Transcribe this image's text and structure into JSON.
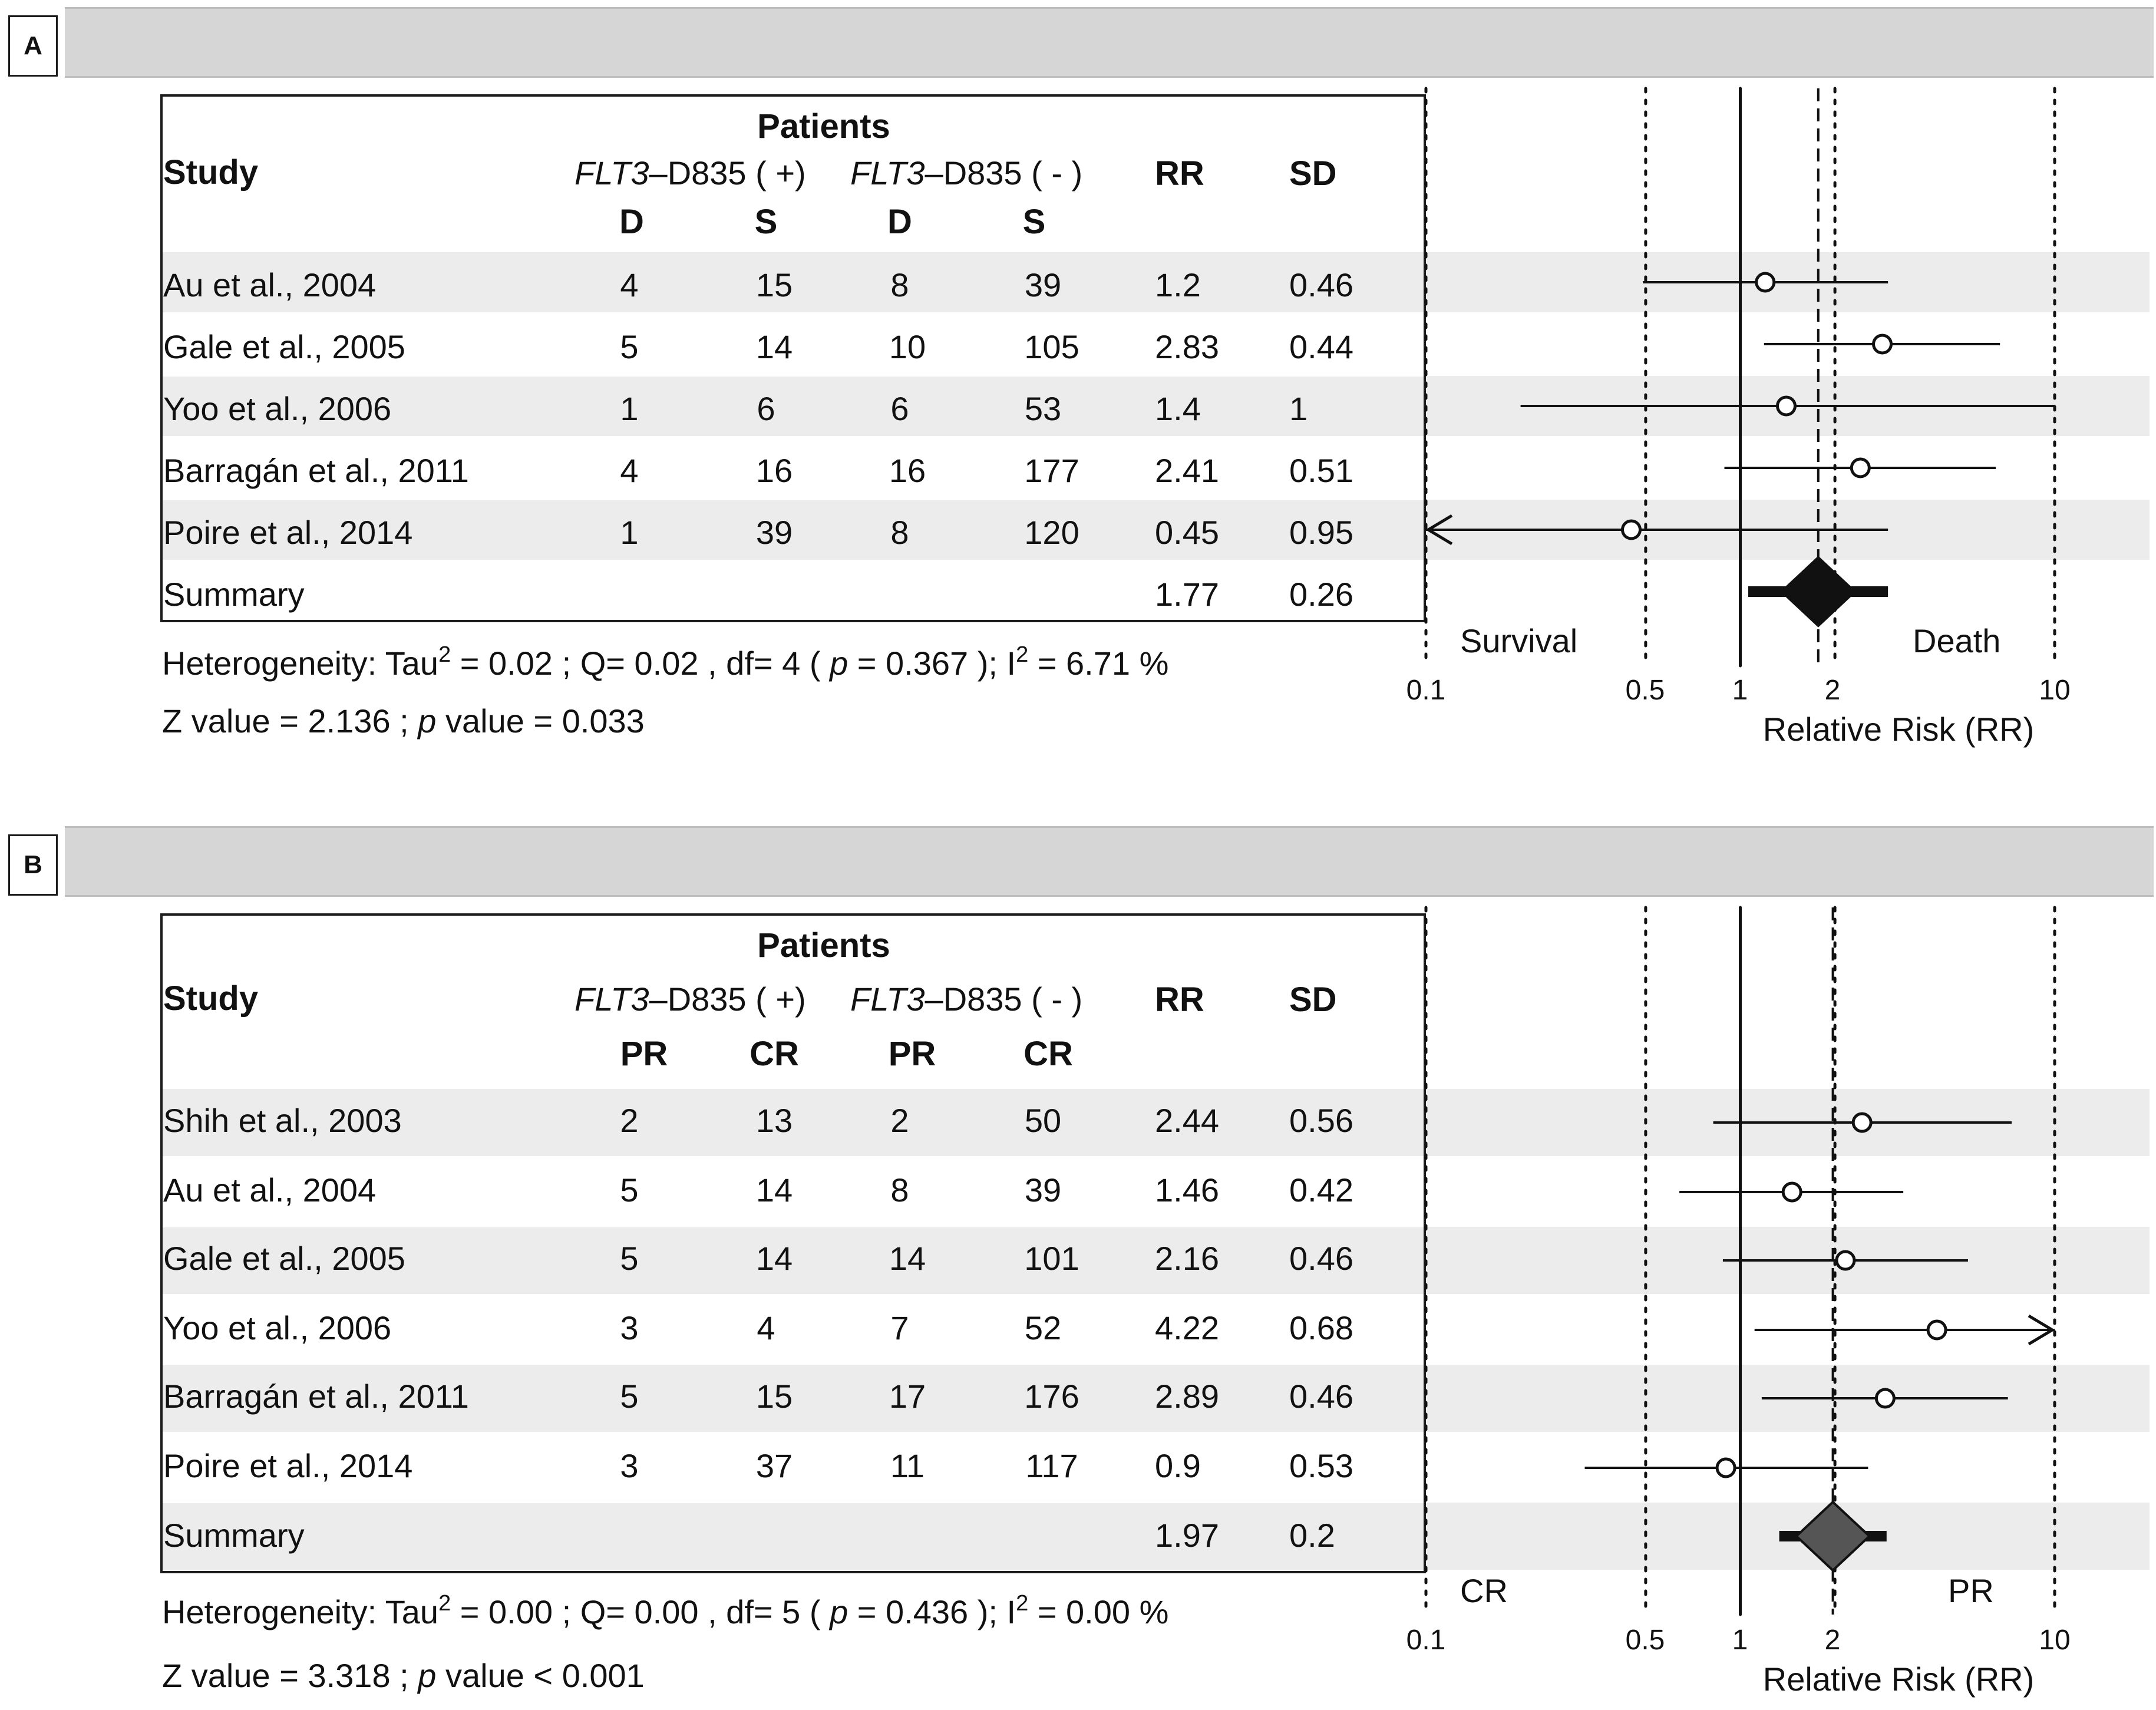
{
  "panels": [
    {
      "label": "A",
      "header": {
        "patients": "Patients",
        "study": "Study",
        "group_pos": "FLT3",
        "group_pos_suffix": "–D835 ( +)",
        "group_neg": "FLT3",
        "group_neg_suffix": "–D835 ( - )",
        "rr": "RR",
        "sd": "SD",
        "sub": [
          "D",
          "S",
          "D",
          "S"
        ]
      },
      "rows": [
        {
          "study": "Au et al., 2004",
          "a": "4",
          "b": "15",
          "c": "8",
          "d": "39",
          "rr": "1.2",
          "sd": "0.46"
        },
        {
          "study": "Gale et al., 2005",
          "a": "5",
          "b": "14",
          "c": "10",
          "d": "105",
          "rr": "2.83",
          "sd": "0.44"
        },
        {
          "study": "Yoo et al., 2006",
          "a": "1",
          "b": "6",
          "c": "6",
          "d": "53",
          "rr": "1.4",
          "sd": "1"
        },
        {
          "study": "Barragán et al., 2011",
          "a": "4",
          "b": "16",
          "c": "16",
          "d": "177",
          "rr": "2.41",
          "sd": "0.51"
        },
        {
          "study": "Poire et al., 2014",
          "a": "1",
          "b": "39",
          "c": "8",
          "d": "120",
          "rr": "0.45",
          "sd": "0.95"
        }
      ],
      "summary": {
        "label": "Summary",
        "rr": "1.77",
        "sd": "0.26"
      },
      "heterogeneity": {
        "text1": "Heterogeneity: Tau",
        "sup1": "2",
        "text2": " = 0.02 ; Q= 0.02 , df= 4  ( ",
        "p": "p",
        "text3": "  = 0.367 ); I",
        "sup2": "2",
        "text4": "  =  6.71 %"
      },
      "zvalue": {
        "text1": "Z value =  2.136 ;  ",
        "p": "p",
        "text2": "   value = 0.033"
      },
      "left_direction": "Survival",
      "right_direction": "Death",
      "xaxis_label": "Relative Risk (RR)",
      "ticks": [
        "0.1",
        "0.5",
        "1",
        "2",
        "10"
      ]
    },
    {
      "label": "B",
      "header": {
        "patients": "Patients",
        "study": "Study",
        "group_pos": "FLT3",
        "group_pos_suffix": "–D835 ( +)",
        "group_neg": "FLT3",
        "group_neg_suffix": "–D835 ( - )",
        "rr": "RR",
        "sd": "SD",
        "sub": [
          "PR",
          "CR",
          "PR",
          "CR"
        ]
      },
      "rows": [
        {
          "study": "Shih et al., 2003",
          "a": "2",
          "b": "13",
          "c": "2",
          "d": "50",
          "rr": "2.44",
          "sd": "0.56"
        },
        {
          "study": "Au et al., 2004",
          "a": "5",
          "b": "14",
          "c": "8",
          "d": "39",
          "rr": "1.46",
          "sd": "0.42"
        },
        {
          "study": "Gale et al., 2005",
          "a": "5",
          "b": "14",
          "c": "14",
          "d": "101",
          "rr": "2.16",
          "sd": "0.46"
        },
        {
          "study": "Yoo et al., 2006",
          "a": "3",
          "b": "4",
          "c": "7",
          "d": "52",
          "rr": "4.22",
          "sd": "0.68"
        },
        {
          "study": "Barragán et al., 2011",
          "a": "5",
          "b": "15",
          "c": "17",
          "d": "176",
          "rr": "2.89",
          "sd": "0.46"
        },
        {
          "study": "Poire et al., 2014",
          "a": "3",
          "b": "37",
          "c": "11",
          "d": "117",
          "rr": "0.9",
          "sd": "0.53"
        }
      ],
      "summary": {
        "label": "Summary",
        "rr": "1.97",
        "sd": "0.2"
      },
      "heterogeneity": {
        "text1": "Heterogeneity: Tau",
        "sup1": "2",
        "text2": " = 0.00 ; Q= 0.00 , df= 5  ( ",
        "p": "p",
        "text3": "  = 0.436 ); I",
        "sup2": "2",
        "text4": "  =  0.00 %"
      },
      "zvalue": {
        "text1": "Z value =  3.318 ;  ",
        "p": "p",
        "text2": "   value < 0.001"
      },
      "left_direction": "CR",
      "right_direction": "PR",
      "xaxis_label": "Relative Risk (RR)",
      "ticks": [
        "0.1",
        "0.5",
        "1",
        "2",
        "10"
      ]
    }
  ],
  "chart_data": [
    {
      "type": "forest",
      "scale": "log",
      "xlim": [
        0.1,
        10
      ],
      "reference_lines": [
        0.1,
        0.5,
        1,
        2,
        10
      ],
      "summary_line": 1.77,
      "points": [
        {
          "study": "Au et al., 2004",
          "rr": 1.2,
          "lower": 0.49,
          "upper": 2.95
        },
        {
          "study": "Gale et al., 2005",
          "rr": 2.83,
          "lower": 1.19,
          "upper": 6.7
        },
        {
          "study": "Yoo et al., 2006",
          "rr": 1.4,
          "lower": 0.2,
          "upper": 10
        },
        {
          "study": "Barragán et al., 2011",
          "rr": 2.41,
          "lower": 0.89,
          "upper": 6.5
        },
        {
          "study": "Poire et al., 2014",
          "rr": 0.45,
          "lower": 0.1,
          "upper": 2.95,
          "arrow_left": true
        }
      ],
      "summary": {
        "rr": 1.77,
        "lower": 1.06,
        "upper": 2.95
      }
    },
    {
      "type": "forest",
      "scale": "log",
      "xlim": [
        0.1,
        10
      ],
      "reference_lines": [
        0.1,
        0.5,
        1,
        2,
        10
      ],
      "summary_line": 1.97,
      "points": [
        {
          "study": "Shih et al., 2003",
          "rr": 2.44,
          "lower": 0.82,
          "upper": 7.3
        },
        {
          "study": "Au et al., 2004",
          "rr": 1.46,
          "lower": 0.64,
          "upper": 3.3
        },
        {
          "study": "Gale et al., 2005",
          "rr": 2.16,
          "lower": 0.88,
          "upper": 5.3
        },
        {
          "study": "Yoo et al., 2006",
          "rr": 4.22,
          "lower": 1.11,
          "upper": 10,
          "arrow_right": true
        },
        {
          "study": "Barragán et al., 2011",
          "rr": 2.89,
          "lower": 1.17,
          "upper": 7.1
        },
        {
          "study": "Poire et al., 2014",
          "rr": 0.9,
          "lower": 0.32,
          "upper": 2.55
        }
      ],
      "summary": {
        "rr": 1.97,
        "lower": 1.33,
        "upper": 2.92
      }
    }
  ]
}
